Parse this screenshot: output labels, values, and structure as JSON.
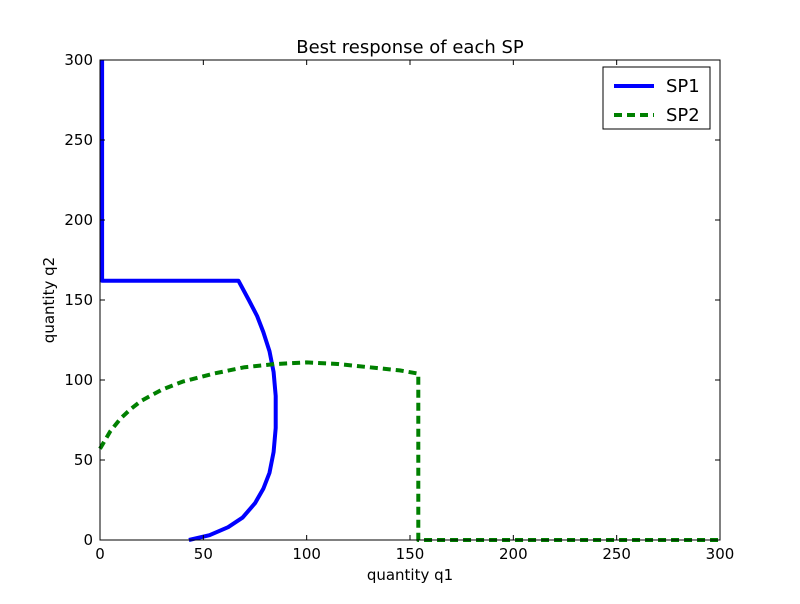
{
  "chart_data": {
    "type": "line",
    "title": "Best response of each SP",
    "xlabel": "quantity q1",
    "ylabel": "quantity q2",
    "xlim": [
      0,
      300
    ],
    "ylim": [
      0,
      300
    ],
    "xticks": [
      "0",
      "50",
      "100",
      "150",
      "200",
      "250",
      "300"
    ],
    "yticks": [
      "0",
      "50",
      "100",
      "150",
      "200",
      "250",
      "300"
    ],
    "grid": false,
    "legend": {
      "placement": "top-right"
    },
    "series": [
      {
        "name": "SP1",
        "color": "#0000ff",
        "style": "solid",
        "x": [
          1,
          1,
          67,
          72,
          76,
          79,
          82,
          84,
          85,
          85,
          84,
          82,
          79,
          75,
          69,
          62,
          53,
          43
        ],
        "y": [
          300,
          162,
          162,
          150,
          140,
          130,
          118,
          105,
          90,
          70,
          55,
          42,
          32,
          23,
          14,
          8,
          3,
          0
        ]
      },
      {
        "name": "SP2",
        "color": "#008000",
        "style": "dashed",
        "x": [
          0,
          5,
          10,
          15,
          20,
          30,
          40,
          55,
          70,
          85,
          100,
          115,
          130,
          145,
          154,
          154,
          155,
          170,
          200,
          250,
          300
        ],
        "y": [
          57,
          68,
          76,
          82,
          87,
          94,
          99,
          104,
          108,
          110,
          111,
          110,
          108,
          106,
          104,
          0,
          0,
          0,
          0,
          0,
          0
        ]
      }
    ]
  }
}
